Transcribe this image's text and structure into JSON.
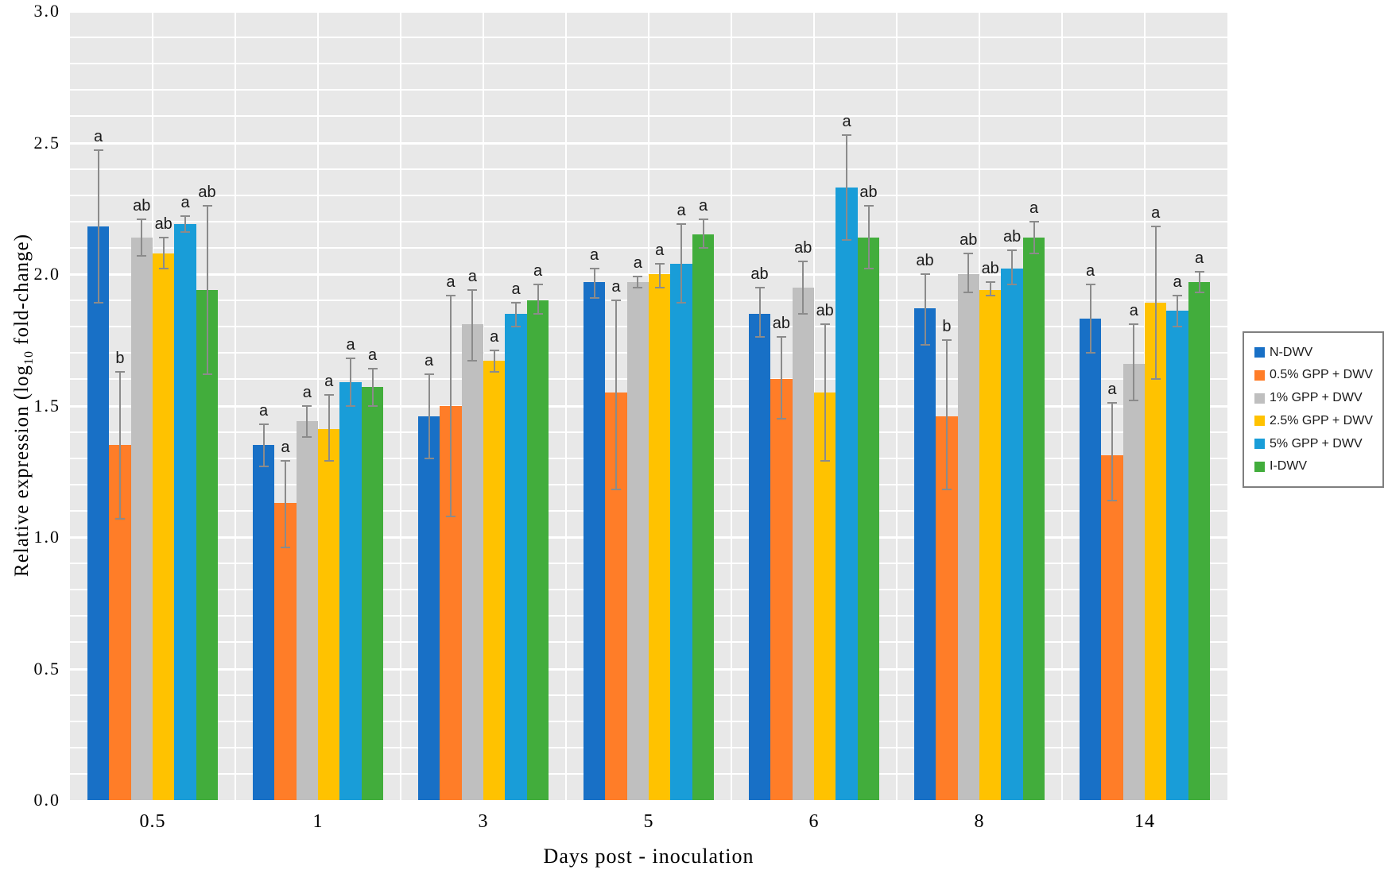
{
  "chart_data": {
    "type": "bar",
    "title": "",
    "xlabel": "Days post - inoculation",
    "ylabel_prefix": "Relative expression (log",
    "ylabel_sub": "10",
    "ylabel_suffix": " fold-change)",
    "ylim": [
      0.0,
      3.0
    ],
    "ytick_step": 0.5,
    "yticks": [
      "0.0",
      "0.5",
      "1.0",
      "1.5",
      "2.0",
      "2.5",
      "3.0"
    ],
    "minor_grid_step": 0.1,
    "grid": "on",
    "legend_position": "right",
    "plot_background": "#e8e8e8",
    "gridline_color": "#ffffff",
    "error_bar_color": "#8b8b8b",
    "categories": [
      "0.5",
      "1",
      "3",
      "5",
      "6",
      "8",
      "14"
    ],
    "series": [
      {
        "name": "N-DWV",
        "color": "#1870c6",
        "values": [
          2.18,
          1.35,
          1.46,
          1.97,
          1.85,
          1.87,
          1.83
        ],
        "err_low": [
          1.89,
          1.27,
          1.3,
          1.91,
          1.76,
          1.73,
          1.7
        ],
        "err_high": [
          2.47,
          1.43,
          1.62,
          2.02,
          1.95,
          2.0,
          1.96
        ],
        "letters": [
          "a",
          "a",
          "a",
          "a",
          "ab",
          "ab",
          "a"
        ]
      },
      {
        "name": "0.5% GPP + DWV",
        "color": "#ff7d28",
        "values": [
          1.35,
          1.13,
          1.5,
          1.55,
          1.6,
          1.46,
          1.31
        ],
        "err_low": [
          1.07,
          0.96,
          1.08,
          1.18,
          1.45,
          1.18,
          1.14
        ],
        "err_high": [
          1.63,
          1.29,
          1.92,
          1.9,
          1.76,
          1.75,
          1.51
        ],
        "letters": [
          "b",
          "a",
          "a",
          "a",
          "ab",
          "b",
          "a"
        ]
      },
      {
        "name": "1% GPP + DWV",
        "color": "#bfbfbf",
        "values": [
          2.14,
          1.44,
          1.81,
          1.97,
          1.95,
          2.0,
          1.66
        ],
        "err_low": [
          2.07,
          1.38,
          1.67,
          1.95,
          1.85,
          1.93,
          1.52
        ],
        "err_high": [
          2.21,
          1.5,
          1.94,
          1.99,
          2.05,
          2.08,
          1.81
        ],
        "letters": [
          "ab",
          "a",
          "a",
          "a",
          "ab",
          "ab",
          "a"
        ]
      },
      {
        "name": "2.5% GPP + DWV",
        "color": "#ffc200",
        "values": [
          2.08,
          1.41,
          1.67,
          2.0,
          1.55,
          1.94,
          1.89
        ],
        "err_low": [
          2.02,
          1.29,
          1.63,
          1.95,
          1.29,
          1.92,
          1.6
        ],
        "err_high": [
          2.14,
          1.54,
          1.71,
          2.04,
          1.81,
          1.97,
          2.18
        ],
        "letters": [
          "ab",
          "a",
          "a",
          "a",
          "ab",
          "ab",
          "a"
        ]
      },
      {
        "name": "5% GPP + DWV",
        "color": "#199dd8",
        "values": [
          2.19,
          1.59,
          1.85,
          2.04,
          2.33,
          2.02,
          1.86
        ],
        "err_low": [
          2.16,
          1.5,
          1.8,
          1.89,
          2.13,
          1.96,
          1.8
        ],
        "err_high": [
          2.22,
          1.68,
          1.89,
          2.19,
          2.53,
          2.09,
          1.92
        ],
        "letters": [
          "a",
          "a",
          "a",
          "a",
          "a",
          "ab",
          "a"
        ]
      },
      {
        "name": "I-DWV",
        "color": "#42ad3c",
        "values": [
          1.94,
          1.57,
          1.9,
          2.15,
          2.14,
          2.14,
          1.97
        ],
        "err_low": [
          1.62,
          1.5,
          1.85,
          2.1,
          2.02,
          2.08,
          1.93
        ],
        "err_high": [
          2.26,
          1.64,
          1.96,
          2.21,
          2.26,
          2.2,
          2.01
        ],
        "letters": [
          "ab",
          "a",
          "a",
          "a",
          "ab",
          "a",
          "a"
        ]
      }
    ]
  }
}
